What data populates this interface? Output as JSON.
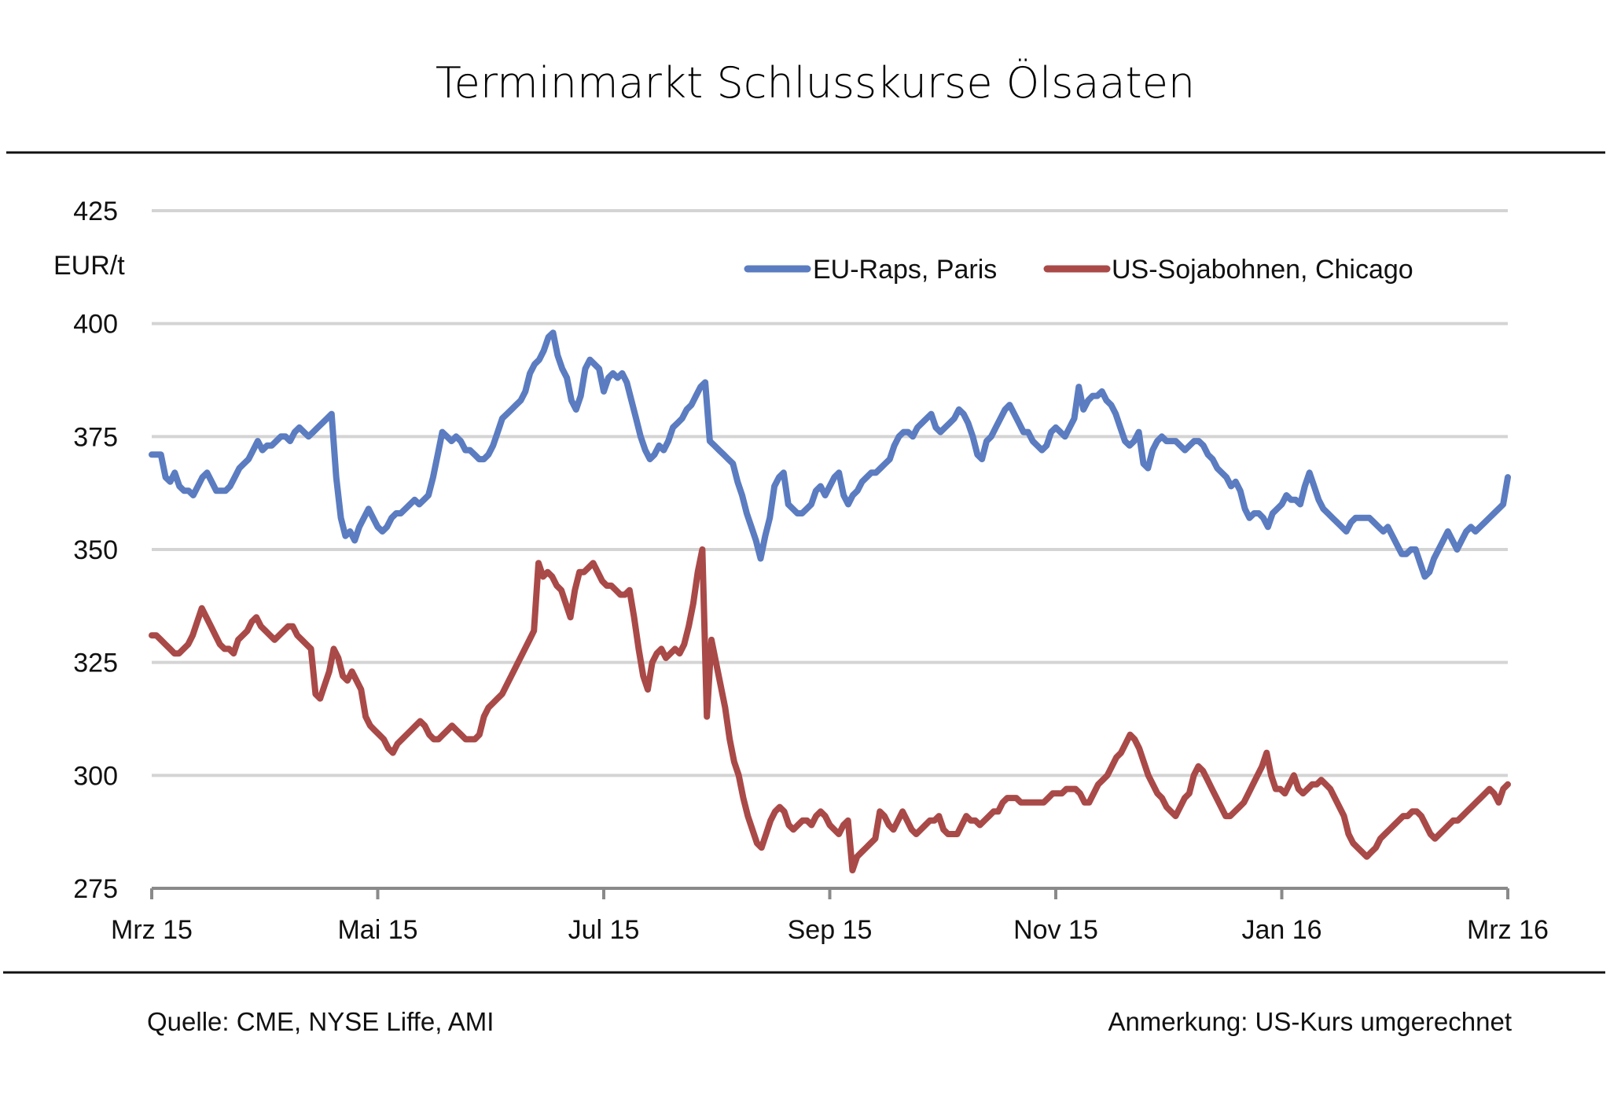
{
  "chart_data": {
    "type": "line",
    "title": "Terminmarkt Schlusskurse  Ölsaaten",
    "ylabel": "EUR/t",
    "xlabel": "",
    "ylim": [
      275,
      425
    ],
    "yticks": [
      "425",
      "400",
      "375",
      "350",
      "325",
      "300",
      "275"
    ],
    "ytick_values": [
      425,
      400,
      375,
      350,
      325,
      300,
      275
    ],
    "xticks": [
      "Mrz 15",
      "Mai 15",
      "Jul 15",
      "Sep 15",
      "Nov 15",
      "Jan 16",
      "Mrz 16"
    ],
    "x_start": "2015-03-02",
    "x_end": "2016-03-01",
    "grid": true,
    "legend_position": "top-right",
    "series": [
      {
        "name": "EU-Raps, Paris",
        "color": "#5b7cc0",
        "values": [
          371,
          371,
          371,
          366,
          365,
          367,
          364,
          363,
          363,
          362,
          364,
          366,
          367,
          365,
          363,
          363,
          363,
          364,
          366,
          368,
          369,
          370,
          372,
          374,
          372,
          373,
          373,
          374,
          375,
          375,
          374,
          376,
          377,
          376,
          375,
          376,
          377,
          378,
          379,
          380,
          366,
          357,
          353,
          354,
          352,
          355,
          357,
          359,
          357,
          355,
          354,
          355,
          357,
          358,
          358,
          359,
          360,
          361,
          360,
          361,
          362,
          366,
          371,
          376,
          375,
          374,
          375,
          374,
          372,
          372,
          371,
          370,
          370,
          371,
          373,
          376,
          379,
          380,
          381,
          382,
          383,
          385,
          389,
          391,
          392,
          394,
          397,
          398,
          393,
          390,
          388,
          383,
          381,
          384,
          390,
          392,
          391,
          390,
          385,
          388,
          389,
          388,
          389,
          387,
          383,
          379,
          375,
          372,
          370,
          371,
          373,
          372,
          374,
          377,
          378,
          379,
          381,
          382,
          384,
          386,
          387,
          374,
          373,
          372,
          371,
          370,
          369,
          365,
          362,
          358,
          355,
          352,
          348,
          353,
          357,
          364,
          366,
          367,
          360,
          359,
          358,
          358,
          359,
          360,
          363,
          364,
          362,
          364,
          366,
          367,
          362,
          360,
          362,
          363,
          365,
          366,
          367,
          367,
          368,
          369,
          370,
          373,
          375,
          376,
          376,
          375,
          377,
          378,
          379,
          380,
          377,
          376,
          377,
          378,
          379,
          381,
          380,
          378,
          375,
          371,
          370,
          374,
          375,
          377,
          379,
          381,
          382,
          380,
          378,
          376,
          376,
          374,
          373,
          372,
          373,
          376,
          377,
          376,
          375,
          377,
          379,
          386,
          381,
          383,
          384,
          384,
          385,
          383,
          382,
          380,
          377,
          374,
          373,
          374,
          376,
          369,
          368,
          372,
          374,
          375,
          374,
          374,
          374,
          373,
          372,
          373,
          374,
          374,
          373,
          371,
          370,
          368,
          367,
          366,
          364,
          365,
          363,
          359,
          357,
          358,
          358,
          357,
          355,
          358,
          359,
          360,
          362,
          361,
          361,
          360,
          364,
          367,
          364,
          361,
          359,
          358,
          357,
          356,
          355,
          354,
          356,
          357,
          357,
          357,
          357,
          356,
          355,
          354,
          355,
          353,
          351,
          349,
          349,
          350,
          350,
          347,
          344,
          345,
          348,
          350,
          352,
          354,
          352,
          350,
          352,
          354,
          355,
          354,
          355,
          356,
          357,
          358,
          359,
          360,
          366
        ]
      },
      {
        "name": "US-Sojabohnen, Chicago",
        "color": "#a94a48",
        "values": [
          331,
          331,
          330,
          329,
          328,
          327,
          327,
          328,
          329,
          331,
          334,
          337,
          335,
          333,
          331,
          329,
          328,
          328,
          327,
          330,
          331,
          332,
          334,
          335,
          333,
          332,
          331,
          330,
          331,
          332,
          333,
          333,
          331,
          330,
          329,
          328,
          318,
          317,
          320,
          323,
          328,
          326,
          322,
          321,
          323,
          321,
          319,
          313,
          311,
          310,
          309,
          308,
          306,
          305,
          307,
          308,
          309,
          310,
          311,
          312,
          311,
          309,
          308,
          308,
          309,
          310,
          311,
          310,
          309,
          308,
          308,
          308,
          309,
          313,
          315,
          316,
          317,
          318,
          320,
          322,
          324,
          326,
          328,
          330,
          332,
          347,
          344,
          345,
          344,
          342,
          341,
          338,
          335,
          341,
          345,
          345,
          346,
          347,
          345,
          343,
          342,
          342,
          341,
          340,
          340,
          341,
          335,
          328,
          322,
          319,
          325,
          327,
          328,
          326,
          327,
          328,
          327,
          329,
          333,
          338,
          345,
          350,
          313,
          330,
          325,
          320,
          315,
          308,
          303,
          300,
          295,
          291,
          288,
          285,
          284,
          287,
          290,
          292,
          293,
          292,
          289,
          288,
          289,
          290,
          290,
          289,
          291,
          292,
          291,
          289,
          288,
          287,
          289,
          290,
          279,
          282,
          283,
          284,
          285,
          286,
          292,
          291,
          289,
          288,
          290,
          292,
          290,
          288,
          287,
          288,
          289,
          290,
          290,
          291,
          288,
          287,
          287,
          287,
          289,
          291,
          290,
          290,
          289,
          290,
          291,
          292,
          292,
          294,
          295,
          295,
          295,
          294,
          294,
          294,
          294,
          294,
          294,
          295,
          296,
          296,
          296,
          297,
          297,
          297,
          296,
          294,
          294,
          296,
          298,
          299,
          300,
          302,
          304,
          305,
          307,
          309,
          308,
          306,
          303,
          300,
          298,
          296,
          295,
          293,
          292,
          291,
          293,
          295,
          296,
          300,
          302,
          301,
          299,
          297,
          295,
          293,
          291,
          291,
          292,
          293,
          294,
          296,
          298,
          300,
          302,
          305,
          300,
          297,
          297,
          296,
          298,
          300,
          297,
          296,
          297,
          298,
          298,
          299,
          298,
          297,
          295,
          293,
          291,
          287,
          285,
          284,
          283,
          282,
          283,
          284,
          286,
          287,
          288,
          289,
          290,
          291,
          291,
          292,
          292,
          291,
          289,
          287,
          286,
          287,
          288,
          289,
          290,
          290,
          291,
          292,
          293,
          294,
          295,
          296,
          297,
          296,
          294,
          297,
          298
        ]
      }
    ]
  },
  "footer": {
    "source": "Quelle: CME, NYSE Liffe, AMI",
    "note": "Anmerkung:  US-Kurs umgerechnet"
  }
}
